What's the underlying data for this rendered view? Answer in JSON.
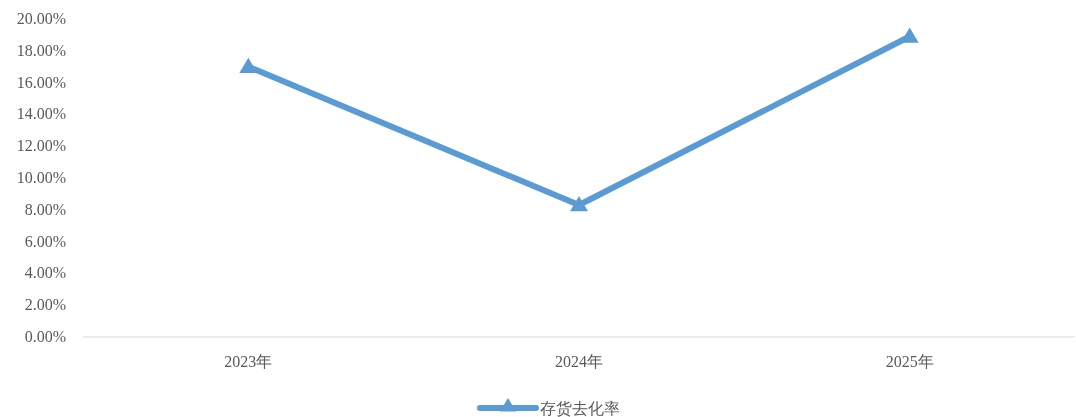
{
  "chart_data": {
    "type": "line",
    "categories": [
      "2023年",
      "2024年",
      "2025年"
    ],
    "series": [
      {
        "name": "存货去化率",
        "color": "#5b9bd5",
        "values": [
          17.0,
          8.3,
          18.9
        ]
      }
    ],
    "ylim": [
      0,
      20
    ],
    "yticks": [
      {
        "value": 0,
        "label": "0.00%"
      },
      {
        "value": 2,
        "label": "2.00%"
      },
      {
        "value": 4,
        "label": "4.00%"
      },
      {
        "value": 6,
        "label": "6.00%"
      },
      {
        "value": 8,
        "label": "8.00%"
      },
      {
        "value": 10,
        "label": "10.00%"
      },
      {
        "value": 12,
        "label": "12.00%"
      },
      {
        "value": 14,
        "label": "14.00%"
      },
      {
        "value": 16,
        "label": "16.00%"
      },
      {
        "value": 18,
        "label": "18.00%"
      },
      {
        "value": 20,
        "label": "20.00%"
      }
    ],
    "marker": "triangle",
    "line_style": "solid",
    "legend": "bottom",
    "grid": false
  }
}
